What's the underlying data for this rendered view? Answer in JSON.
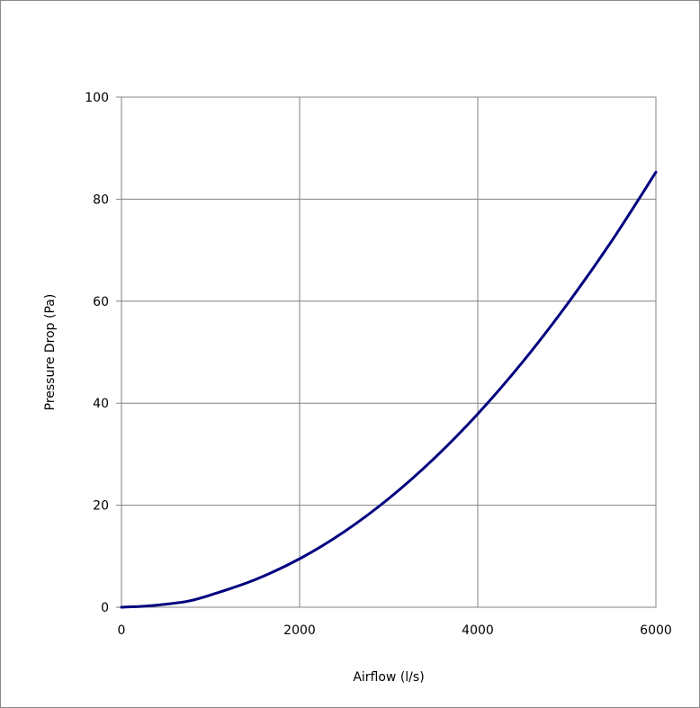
{
  "chart_data": {
    "type": "line",
    "title": "",
    "xlabel": "Airflow (l/s)",
    "ylabel": "Pressure Drop (Pa)",
    "xlim": [
      0,
      6000
    ],
    "ylim": [
      0,
      100
    ],
    "x_ticks": [
      "0",
      "2000",
      "4000",
      "6000"
    ],
    "y_ticks": [
      "0",
      "20",
      "40",
      "60",
      "80",
      "100"
    ],
    "grid": true,
    "legend": "none",
    "series": [
      {
        "color": "#00007f",
        "x": [
          0,
          250,
          500,
          750,
          1000,
          1500,
          2000,
          2500,
          3000,
          3500,
          4000,
          4500,
          5000,
          5500,
          6000
        ],
        "y": [
          0,
          0.2,
          0.6,
          1.2,
          2.4,
          5.4,
          9.5,
          14.8,
          21.3,
          29.0,
          37.9,
          48.0,
          59.3,
          71.7,
          85.3
        ]
      }
    ]
  }
}
